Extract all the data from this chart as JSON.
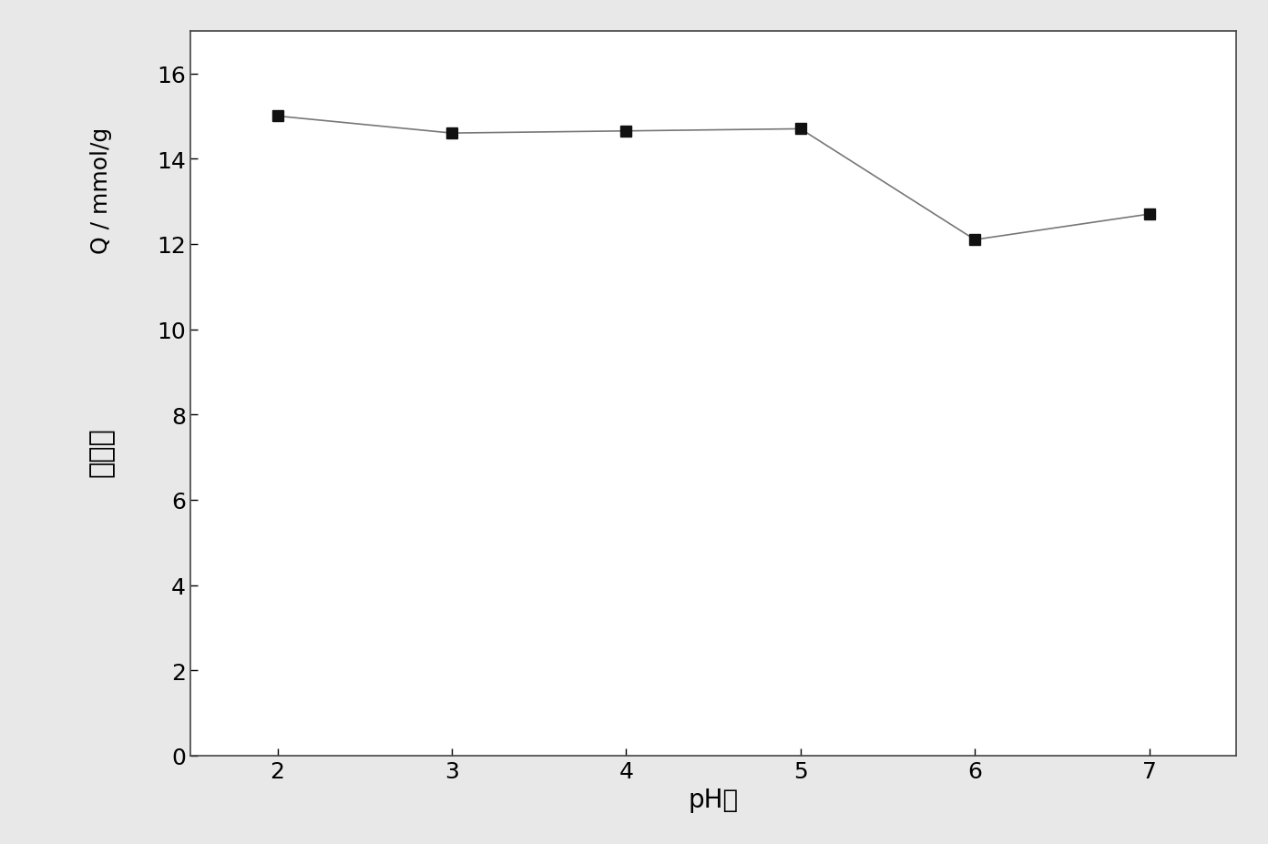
{
  "x": [
    2,
    3,
    4,
    5,
    6,
    7
  ],
  "y": [
    15.0,
    14.6,
    14.65,
    14.7,
    12.1,
    12.7
  ],
  "xlabel": "pH値",
  "ylabel_latin": "Q / mmol/g",
  "ylabel_chinese": "吸附量",
  "xlim": [
    1.5,
    7.5
  ],
  "ylim": [
    0,
    17
  ],
  "yticks": [
    0,
    2,
    4,
    6,
    8,
    10,
    12,
    14,
    16
  ],
  "xticks": [
    2,
    3,
    4,
    5,
    6,
    7
  ],
  "line_color": "#777777",
  "marker_color": "#111111",
  "marker": "s",
  "marker_size": 9,
  "line_width": 1.2,
  "background_color": "#e8e8e8",
  "plot_bg_color": "#ffffff",
  "xlabel_fontsize": 20,
  "ylabel_fontsize": 18,
  "tick_fontsize": 18
}
